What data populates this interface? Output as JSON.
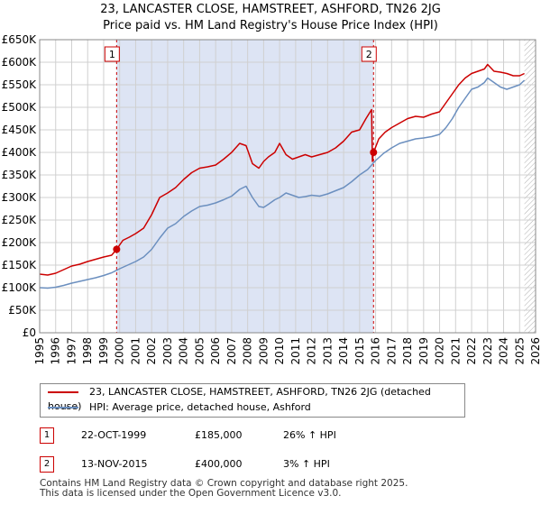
{
  "title": {
    "line1": "23, LANCASTER CLOSE, HAMSTREET, ASHFORD, TN26 2JG",
    "line2": "Price paid vs. HM Land Registry's House Price Index (HPI)"
  },
  "colors": {
    "property": "#cc0000",
    "hpi": "#6b8fbf",
    "shade": "#dde4f4",
    "grid": "#d0d0d0"
  },
  "chart_data": {
    "type": "line",
    "title": "Price paid vs. HM Land Registry's House Price Index (HPI)",
    "xlabel": "",
    "ylabel": "",
    "xlim": [
      1995,
      2026
    ],
    "ylim": [
      0,
      650000
    ],
    "x_ticks": [
      1995,
      1996,
      1997,
      1998,
      1999,
      2000,
      2001,
      2002,
      2003,
      2004,
      2005,
      2006,
      2007,
      2008,
      2009,
      2010,
      2011,
      2012,
      2013,
      2014,
      2015,
      2016,
      2017,
      2018,
      2019,
      2020,
      2021,
      2022,
      2023,
      2024,
      2025,
      2026
    ],
    "y_ticks": [
      0,
      50000,
      100000,
      150000,
      200000,
      250000,
      300000,
      350000,
      400000,
      450000,
      500000,
      550000,
      600000,
      650000
    ],
    "y_tick_labels": [
      "£0",
      "£50K",
      "£100K",
      "£150K",
      "£200K",
      "£250K",
      "£300K",
      "£350K",
      "£400K",
      "£450K",
      "£500K",
      "£550K",
      "£600K",
      "£650K"
    ],
    "grid": true,
    "shaded_period": [
      1999.81,
      2015.87
    ],
    "forecast_hatch_from": 2025.3,
    "series": [
      {
        "name": "23, LANCASTER CLOSE, HAMSTREET, ASHFORD, TN26 2JG (detached house)",
        "color": "#cc0000",
        "x": [
          1995.0,
          1995.5,
          1996.0,
          1996.5,
          1997.0,
          1997.5,
          1998.0,
          1998.5,
          1999.0,
          1999.5,
          1999.81,
          2000.2,
          2000.6,
          2001.0,
          2001.5,
          2002.0,
          2002.5,
          2003.0,
          2003.5,
          2004.0,
          2004.5,
          2005.0,
          2005.5,
          2006.0,
          2006.5,
          2007.0,
          2007.5,
          2007.9,
          2008.3,
          2008.7,
          2009.0,
          2009.3,
          2009.7,
          2010.0,
          2010.4,
          2010.8,
          2011.2,
          2011.6,
          2012.0,
          2012.5,
          2013.0,
          2013.5,
          2014.0,
          2014.5,
          2015.0,
          2015.4,
          2015.75,
          2015.8,
          2015.87,
          2016.2,
          2016.6,
          2017.0,
          2017.5,
          2018.0,
          2018.5,
          2019.0,
          2019.5,
          2020.0,
          2020.4,
          2020.8,
          2021.2,
          2021.6,
          2022.0,
          2022.4,
          2022.8,
          2023.0,
          2023.4,
          2023.8,
          2024.2,
          2024.6,
          2025.0,
          2025.3
        ],
        "values": [
          130000,
          128000,
          132000,
          140000,
          148000,
          152000,
          158000,
          163000,
          168000,
          172000,
          185000,
          205000,
          212000,
          220000,
          232000,
          262000,
          300000,
          310000,
          322000,
          340000,
          355000,
          365000,
          368000,
          372000,
          385000,
          400000,
          420000,
          415000,
          375000,
          365000,
          380000,
          390000,
          400000,
          420000,
          395000,
          385000,
          390000,
          395000,
          390000,
          395000,
          400000,
          410000,
          425000,
          445000,
          450000,
          475000,
          495000,
          380000,
          400000,
          430000,
          445000,
          455000,
          465000,
          475000,
          480000,
          478000,
          485000,
          490000,
          510000,
          530000,
          550000,
          565000,
          575000,
          580000,
          585000,
          595000,
          580000,
          578000,
          575000,
          570000,
          570000,
          575000
        ]
      },
      {
        "name": "HPI: Average price, detached house, Ashford",
        "color": "#6b8fbf",
        "x": [
          1995.0,
          1995.5,
          1996.0,
          1996.5,
          1997.0,
          1997.5,
          1998.0,
          1998.5,
          1999.0,
          1999.5,
          2000.0,
          2000.5,
          2001.0,
          2001.5,
          2002.0,
          2002.5,
          2003.0,
          2003.5,
          2004.0,
          2004.5,
          2005.0,
          2005.5,
          2006.0,
          2006.5,
          2007.0,
          2007.5,
          2007.9,
          2008.3,
          2008.7,
          2009.0,
          2009.3,
          2009.7,
          2010.0,
          2010.4,
          2010.8,
          2011.2,
          2011.6,
          2012.0,
          2012.5,
          2013.0,
          2013.5,
          2014.0,
          2014.5,
          2015.0,
          2015.5,
          2016.0,
          2016.5,
          2017.0,
          2017.5,
          2018.0,
          2018.5,
          2019.0,
          2019.5,
          2020.0,
          2020.4,
          2020.8,
          2021.2,
          2021.6,
          2022.0,
          2022.4,
          2022.8,
          2023.0,
          2023.4,
          2023.8,
          2024.2,
          2024.6,
          2025.0,
          2025.3
        ],
        "values": [
          100000,
          99000,
          101000,
          105000,
          110000,
          114000,
          118000,
          122000,
          127000,
          133000,
          142000,
          150000,
          158000,
          168000,
          185000,
          210000,
          232000,
          242000,
          258000,
          270000,
          280000,
          283000,
          288000,
          295000,
          303000,
          318000,
          325000,
          300000,
          280000,
          278000,
          285000,
          295000,
          300000,
          310000,
          305000,
          300000,
          302000,
          305000,
          303000,
          308000,
          315000,
          322000,
          335000,
          350000,
          362000,
          382000,
          398000,
          410000,
          420000,
          425000,
          430000,
          432000,
          435000,
          440000,
          455000,
          475000,
          500000,
          520000,
          540000,
          545000,
          555000,
          565000,
          555000,
          545000,
          540000,
          545000,
          550000,
          560000
        ]
      }
    ],
    "annotations": [
      {
        "label": "1",
        "x": 1999.81,
        "y": 185000
      },
      {
        "label": "2",
        "x": 2015.87,
        "y": 400000
      }
    ]
  },
  "legend": {
    "property_label": "23, LANCASTER CLOSE, HAMSTREET, ASHFORD, TN26 2JG (detached house)",
    "hpi_label": "HPI: Average price, detached house, Ashford"
  },
  "sales": [
    {
      "badge": "1",
      "date": "22-OCT-1999",
      "price": "£185,000",
      "hpi": "26% ↑ HPI"
    },
    {
      "badge": "2",
      "date": "13-NOV-2015",
      "price": "£400,000",
      "hpi": "3% ↑ HPI"
    }
  ],
  "footer": {
    "line1": "Contains HM Land Registry data © Crown copyright and database right 2025.",
    "line2": "This data is licensed under the Open Government Licence v3.0."
  }
}
